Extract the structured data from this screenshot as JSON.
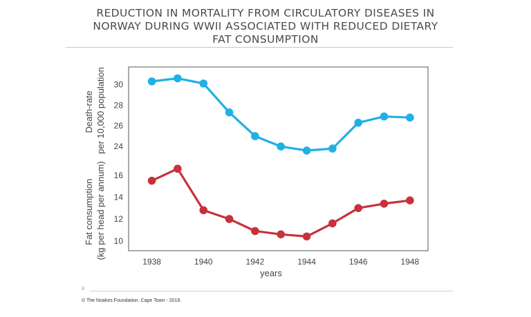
{
  "title_lines": [
    "REDUCTION IN MORTALITY FROM CIRCULATORY DISEASES IN",
    "NORWAY DURING WWII ASSOCIATED WITH REDUCED DIETARY",
    "FAT CONSUMPTION"
  ],
  "footer": {
    "slide_number": "3",
    "copyright": "© The Noakes Foundation. Cape Town - 2019."
  },
  "colors": {
    "death_rate": "#1fb0e6",
    "fat": "#c8313c"
  },
  "chart_data": {
    "type": "line",
    "title": "REDUCTION IN MORTALITY FROM CIRCULATORY DISEASES IN NORWAY DURING WWII ASSOCIATED WITH REDUCED DIETARY FAT CONSUMPTION",
    "xlabel": "years",
    "x_ticks": [
      "1938",
      "1940",
      "1942",
      "1944",
      "1946",
      "1948"
    ],
    "x": [
      1938,
      1939,
      1940,
      1941,
      1942,
      1943,
      1944,
      1945,
      1946,
      1947,
      1948
    ],
    "xlim": [
      1937.1,
      1948.7
    ],
    "grid": false,
    "series": [
      {
        "ylabel_lines": [
          "Death-rate",
          "per 10,000 population"
        ],
        "color": "#1fb0e6",
        "y_ticks": [
          "24",
          "26",
          "28",
          "30"
        ],
        "ylim": [
          22.8,
          31.7
        ],
        "values": [
          30.3,
          30.6,
          30.1,
          27.3,
          25.0,
          24.0,
          23.6,
          23.8,
          26.3,
          26.9,
          26.8
        ]
      },
      {
        "ylabel_lines": [
          "Fat consumption",
          "(kg per head per annum)"
        ],
        "color": "#c8313c",
        "y_ticks": [
          "10",
          "12",
          "14",
          "16"
        ],
        "ylim": [
          9.1,
          17.5
        ],
        "values": [
          15.5,
          16.6,
          12.8,
          12.0,
          10.9,
          10.6,
          10.4,
          11.6,
          13.0,
          13.4,
          13.7
        ]
      }
    ]
  }
}
